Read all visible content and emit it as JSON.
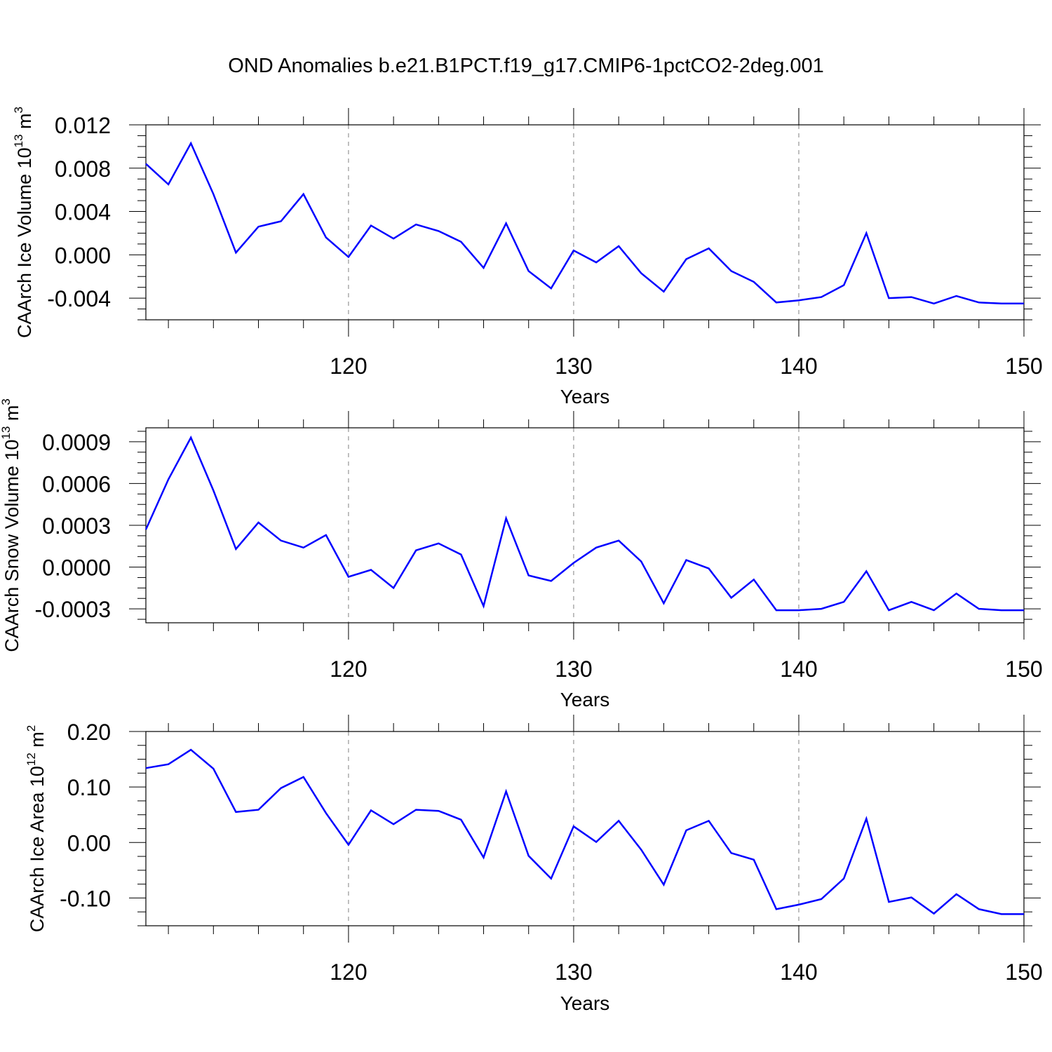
{
  "figure": {
    "title": "OND Anomalies b.e21.B1PCT.f19_g17.CMIP6-1pctCO2-2deg.001"
  },
  "colors": {
    "series": "#0000ff",
    "axes": "#000000",
    "grid": "#808080",
    "background": "#ffffff"
  },
  "chart_data": [
    {
      "type": "line",
      "title": "",
      "xlabel": "Years",
      "ylabel": "CAArch Ice Volume",
      "ylabel_unit_base": "10",
      "ylabel_unit_exp": "13",
      "ylabel_unit_symbol": "m",
      "ylabel_unit_power": "3",
      "xlim": [
        111,
        150
      ],
      "ylim": [
        -0.006,
        0.012
      ],
      "x_ticks": [
        120,
        130,
        140,
        150
      ],
      "y_ticks": [
        0.012,
        0.008,
        0.004,
        0.0,
        -0.004
      ],
      "y_tick_labels": [
        "0.012",
        "0.008",
        "0.004",
        "0.000",
        "-0.004"
      ],
      "x_grid": "dashed vertical at major x ticks",
      "x": [
        111,
        112,
        113,
        114,
        115,
        116,
        117,
        118,
        119,
        120,
        121,
        122,
        123,
        124,
        125,
        126,
        127,
        128,
        129,
        130,
        131,
        132,
        133,
        134,
        135,
        136,
        137,
        138,
        139,
        140,
        141,
        142,
        143,
        144,
        145,
        146,
        147,
        148,
        149,
        150
      ],
      "series": [
        {
          "values": [
            0.0084,
            0.0065,
            0.0103,
            0.0056,
            0.0002,
            0.0026,
            0.0031,
            0.0056,
            0.0016,
            -0.0002,
            0.0027,
            0.0015,
            0.0028,
            0.0022,
            0.0012,
            -0.0012,
            0.0029,
            -0.0015,
            -0.0031,
            0.0004,
            -0.0007,
            0.0008,
            -0.0017,
            -0.0034,
            -0.0004,
            0.0006,
            -0.0015,
            -0.0025,
            -0.0044,
            -0.0042,
            -0.0039,
            -0.0028,
            0.002,
            -0.004,
            -0.0039,
            -0.0045,
            -0.0038,
            -0.0044,
            -0.0045,
            -0.0045
          ]
        }
      ]
    },
    {
      "type": "line",
      "title": "",
      "xlabel": "Years",
      "ylabel": "CAArch Snow Volume",
      "ylabel_unit_base": "10",
      "ylabel_unit_exp": "13",
      "ylabel_unit_symbol": "m",
      "ylabel_unit_power": "3",
      "xlim": [
        111,
        150
      ],
      "ylim": [
        -0.0004,
        0.001
      ],
      "x_ticks": [
        120,
        130,
        140,
        150
      ],
      "y_ticks": [
        0.0009,
        0.0006,
        0.0003,
        0.0,
        -0.0003
      ],
      "y_tick_labels": [
        "0.0009",
        "0.0006",
        "0.0003",
        "0.0000",
        "-0.0003"
      ],
      "x_grid": "dashed vertical at major x ticks",
      "x": [
        111,
        112,
        113,
        114,
        115,
        116,
        117,
        118,
        119,
        120,
        121,
        122,
        123,
        124,
        125,
        126,
        127,
        128,
        129,
        130,
        131,
        132,
        133,
        134,
        135,
        136,
        137,
        138,
        139,
        140,
        141,
        142,
        143,
        144,
        145,
        146,
        147,
        148,
        149,
        150
      ],
      "series": [
        {
          "values": [
            0.00027,
            0.00063,
            0.00093,
            0.00055,
            0.00013,
            0.00032,
            0.00019,
            0.00014,
            0.00023,
            -7e-05,
            -2e-05,
            -0.00015,
            0.00012,
            0.00017,
            9e-05,
            -0.00028,
            0.00035,
            -6e-05,
            -0.0001,
            3e-05,
            0.00014,
            0.00019,
            4e-05,
            -0.00026,
            5e-05,
            -1e-05,
            -0.00022,
            -9e-05,
            -0.00031,
            -0.00031,
            -0.0003,
            -0.00025,
            -3e-05,
            -0.00031,
            -0.00025,
            -0.00031,
            -0.00019,
            -0.0003,
            -0.00031,
            -0.00031
          ]
        }
      ]
    },
    {
      "type": "line",
      "title": "",
      "xlabel": "Years",
      "ylabel": "CAArch Ice Area",
      "ylabel_unit_base": "10",
      "ylabel_unit_exp": "12",
      "ylabel_unit_symbol": "m",
      "ylabel_unit_power": "2",
      "xlim": [
        111,
        150
      ],
      "ylim": [
        -0.15,
        0.2
      ],
      "x_ticks": [
        120,
        130,
        140,
        150
      ],
      "y_ticks": [
        0.2,
        0.1,
        0.0,
        -0.1
      ],
      "y_tick_labels": [
        "0.20",
        "0.10",
        "0.00",
        "-0.10"
      ],
      "x_grid": "dashed vertical at major x ticks",
      "x": [
        111,
        112,
        113,
        114,
        115,
        116,
        117,
        118,
        119,
        120,
        121,
        122,
        123,
        124,
        125,
        126,
        127,
        128,
        129,
        130,
        131,
        132,
        133,
        134,
        135,
        136,
        137,
        138,
        139,
        140,
        141,
        142,
        143,
        144,
        145,
        146,
        147,
        148,
        149,
        150
      ],
      "series": [
        {
          "values": [
            0.134,
            0.141,
            0.167,
            0.133,
            0.055,
            0.059,
            0.098,
            0.118,
            0.053,
            -0.004,
            0.058,
            0.033,
            0.059,
            0.057,
            0.041,
            -0.027,
            0.092,
            -0.024,
            -0.065,
            0.029,
            0.001,
            0.039,
            -0.013,
            -0.076,
            0.022,
            0.039,
            -0.019,
            -0.031,
            -0.12,
            -0.112,
            -0.102,
            -0.065,
            0.043,
            -0.107,
            -0.099,
            -0.128,
            -0.093,
            -0.12,
            -0.129,
            -0.129
          ]
        }
      ]
    }
  ]
}
